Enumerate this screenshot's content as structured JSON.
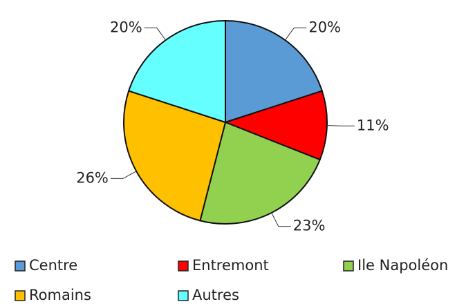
{
  "chart_data": {
    "type": "pie",
    "categories": [
      "Centre",
      "Entremont",
      "Ile Napoléon",
      "Romains",
      "Autres"
    ],
    "values": [
      20,
      11,
      23,
      26,
      20
    ],
    "value_labels": [
      "20%",
      "11%",
      "23%",
      "26%",
      "20%"
    ],
    "colors": [
      "#5b9bd5",
      "#ff0000",
      "#92d050",
      "#ffc000",
      "#66ffff"
    ],
    "legend": "bottom"
  }
}
